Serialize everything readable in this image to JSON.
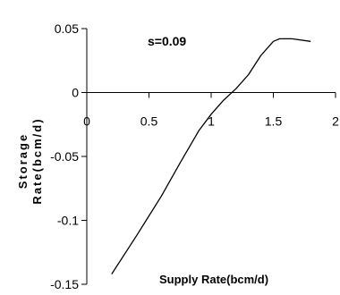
{
  "chart_data": {
    "type": "line",
    "title": "",
    "xlabel": "Supply Rate(bcm/d)",
    "ylabel": "Storage Rate(bcm/d)",
    "ylabel_lines": [
      "Storage",
      "Rate(bcm/d)"
    ],
    "annotation": "s=0.09",
    "xlim": [
      0,
      2
    ],
    "ylim": [
      -0.15,
      0.05
    ],
    "xticks": [
      "0",
      "0.5",
      "1",
      "1.5",
      "2"
    ],
    "yticks": [
      "0.05",
      "0",
      "-0.05",
      "-0.1",
      "-0.15"
    ],
    "grid": false,
    "legend": "none",
    "line_color": "#000000",
    "series": [
      {
        "x": [
          0.2,
          0.4,
          0.6,
          0.75,
          0.9,
          1.0,
          1.1,
          1.2,
          1.3,
          1.4,
          1.5,
          1.55,
          1.65,
          1.8
        ],
        "y": [
          -0.142,
          -0.112,
          -0.081,
          -0.055,
          -0.03,
          -0.017,
          -0.006,
          0.003,
          0.014,
          0.029,
          0.04,
          0.042,
          0.042,
          0.04
        ]
      }
    ]
  }
}
